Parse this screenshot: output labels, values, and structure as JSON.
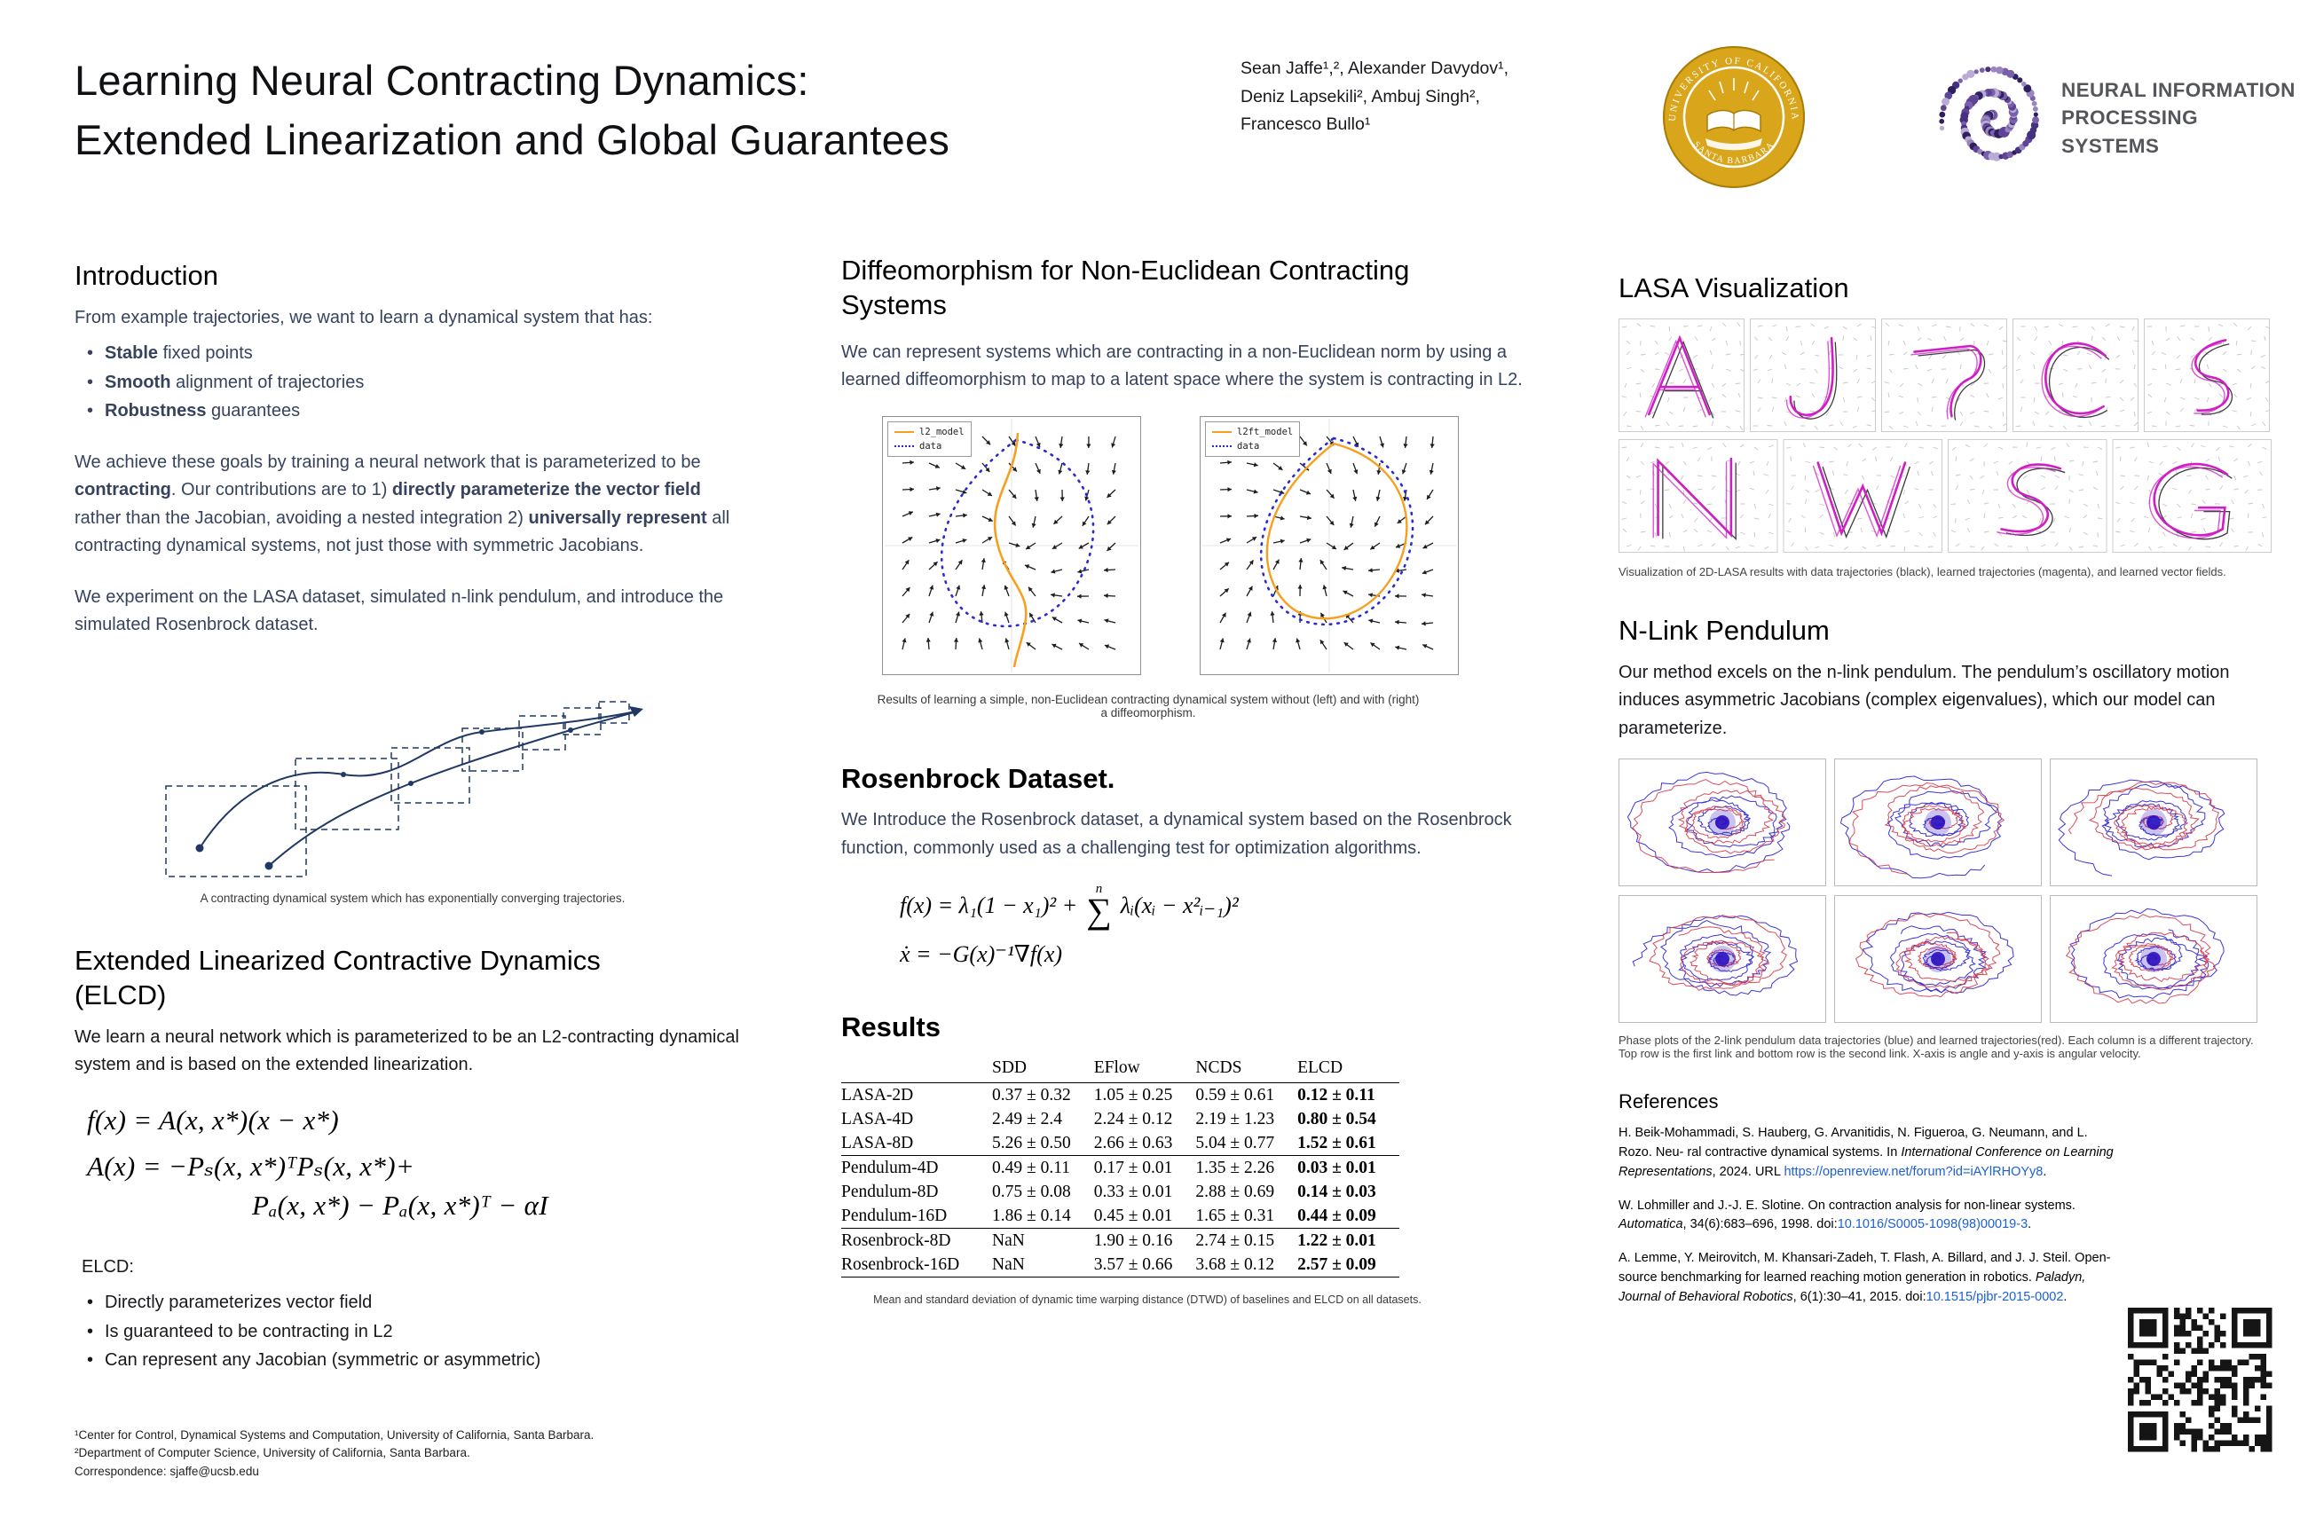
{
  "header": {
    "title_line1": "Learning Neural Contracting Dynamics:",
    "title_line2": "Extended Linearization and Global Guarantees",
    "authors_line1": "Sean Jaffe¹,², Alexander Davydov¹,",
    "authors_line2": "Deniz Lapsekili², Ambuj Singh²,",
    "authors_line3": "Francesco Bullo¹",
    "seal_top": "UNIVERSITY OF CALIFORNIA",
    "seal_bottom": "SANTA BARBARA",
    "neurips_line1": "NEURAL INFORMATION",
    "neurips_line2": "PROCESSING SYSTEMS"
  },
  "intro": {
    "heading": "Introduction",
    "lead": "From example trajectories, we want to learn a dynamical system that has:",
    "bullets": [
      {
        "bold": "Stable",
        "rest": " fixed points"
      },
      {
        "bold": "Smooth",
        "rest": " alignment of trajectories"
      },
      {
        "bold": "Robustness",
        "rest": " guarantees"
      }
    ],
    "para2": {
      "s1": "We achieve these goals by training a neural network that is parameterized to be ",
      "b1": "contracting",
      "s2": ". Our contributions are to 1) ",
      "b2": "directly parameterize the vector field",
      "s3": " rather than the Jacobian, avoiding a nested integration 2) ",
      "b3": "universally represent",
      "s4": " all contracting dynamical systems, not just those with symmetric Jacobians."
    },
    "para3": "We experiment on the LASA dataset, simulated n-link pendulum, and introduce the simulated Rosenbrock dataset.",
    "figure_caption": "A contracting dynamical system which has exponentially converging trajectories."
  },
  "elcd": {
    "heading": "Extended Linearized Contractive Dynamics (ELCD)",
    "body": "We learn a neural network which is parameterized to be an L2-contracting dynamical system and is based on the extended linearization.",
    "eq1": "f(x) = A(x, x*)(x − x*)",
    "eq2a": "A(x) = −Pₛ(x, x*)ᵀPₛ(x, x*)+",
    "eq2b": "Pₐ(x, x*) − Pₐ(x, x*)ᵀ − αI",
    "list_label": "ELCD:",
    "bullets": [
      "Directly parameterizes vector field",
      "Is guaranteed to be contracting in L2",
      "Can represent any Jacobian (symmetric or asymmetric)"
    ]
  },
  "footnotes": {
    "line1": "¹Center for Control, Dynamical Systems and Computation, University of California, Santa Barbara.",
    "line2": "²Department of Computer Science, University of California, Santa Barbara.",
    "line3": "Correspondence: sjaffe@ucsb.edu"
  },
  "diffeo": {
    "heading": "Diffeomorphism for Non-Euclidean Contracting Systems",
    "body": "We can represent systems which are contracting in a non-Euclidean norm by using a learned diffeomorphism to map to a latent space where the system is contracting in L2.",
    "legend_left_model": "l2_model",
    "legend_right_model": "l2ft_model",
    "legend_data": "data",
    "caption": "Results of learning a simple, non-Euclidean contracting dynamical system without (left) and with (right) a diffeomorphism."
  },
  "rosenbrock": {
    "heading": "Rosenbrock Dataset.",
    "body": "We Introduce the Rosenbrock dataset, a dynamical system based on the Rosenbrock function, commonly used as a challenging test for optimization algorithms.",
    "eq1_pre": "f(x) = λ₁(1 − x₁)² +",
    "sum_top": "n",
    "sum_sym": "∑",
    "eq1_post": "λᵢ(xᵢ − x²ᵢ₋₁)²",
    "eq2": "ẋ = −G(x)⁻¹∇f(x)"
  },
  "results": {
    "heading": "Results",
    "columns": [
      "",
      "SDD",
      "EFlow",
      "NCDS",
      "ELCD"
    ],
    "rows": [
      {
        "name": "LASA-2D",
        "sdd": "0.37 ± 0.32",
        "eflow": "1.05 ± 0.25",
        "ncds": "0.59 ± 0.61",
        "elcd": "0.12 ± 0.11"
      },
      {
        "name": "LASA-4D",
        "sdd": "2.49 ± 2.4",
        "eflow": "2.24 ± 0.12",
        "ncds": "2.19 ± 1.23",
        "elcd": "0.80 ± 0.54"
      },
      {
        "name": "LASA-8D",
        "sdd": "5.26 ± 0.50",
        "eflow": "2.66 ± 0.63",
        "ncds": "5.04 ± 0.77",
        "elcd": "1.52 ± 0.61"
      },
      {
        "name": "Pendulum-4D",
        "sdd": "0.49 ± 0.11",
        "eflow": "0.17 ± 0.01",
        "ncds": "1.35 ± 2.26",
        "elcd": "0.03 ± 0.01"
      },
      {
        "name": "Pendulum-8D",
        "sdd": "0.75 ± 0.08",
        "eflow": "0.33 ± 0.01",
        "ncds": "2.88 ± 0.69",
        "elcd": "0.14 ± 0.03"
      },
      {
        "name": "Pendulum-16D",
        "sdd": "1.86 ± 0.14",
        "eflow": "0.45 ± 0.01",
        "ncds": "1.65 ± 0.31",
        "elcd": "0.44 ± 0.09"
      },
      {
        "name": "Rosenbrock-8D",
        "sdd": "NaN",
        "eflow": "1.90 ± 0.16",
        "ncds": "2.74 ± 0.15",
        "elcd": "1.22 ± 0.01"
      },
      {
        "name": "Rosenbrock-16D",
        "sdd": "NaN",
        "eflow": "3.57 ± 0.66",
        "ncds": "3.68 ± 0.12",
        "elcd": "2.57 ± 0.09"
      }
    ],
    "caption": "Mean and standard deviation of dynamic time warping distance (DTWD) of baselines and ELCD on all datasets."
  },
  "lasa": {
    "heading": "LASA Visualization",
    "caption": "Visualization of 2D-LASA results with data trajectories (black), learned trajectories (magenta), and learned vector fields.",
    "letters": [
      "A",
      "J",
      "hook",
      "C",
      "sine",
      "N",
      "W",
      "S",
      "G"
    ]
  },
  "pendulum": {
    "heading": "N-Link Pendulum",
    "body": "Our method excels on the n-link pendulum. The pendulum’s oscillatory motion induces asymmetric Jacobians (complex eigenvalues), which our model can parameterize.",
    "caption": "Phase plots of the 2-link pendulum data trajectories (blue) and learned trajectories(red). Each column is a different trajectory. Top row is the first link and bottom row is the second link. X-axis is angle and y-axis is angular velocity."
  },
  "references": {
    "heading": "References",
    "items": [
      {
        "pre": "H. Beik-Mohammadi, S. Hauberg, G. Arvanitidis, N. Figueroa, G. Neumann, and L. Rozo. Neu- ral contractive dynamical systems. In ",
        "venue": "International Conference on Learning Representations",
        "mid": ", 2024. URL ",
        "link": "https://openreview.net/forum?id=iAYlRHOYy8",
        "post": "."
      },
      {
        "pre": "W. Lohmiller and J.-J. E. Slotine. On contraction analysis for non-linear systems. ",
        "venue": "Automatica",
        "mid": ", 34(6):683–696, 1998. doi:",
        "link": "10.1016/S0005-1098(98)00019-3",
        "post": "."
      },
      {
        "pre": "A. Lemme, Y. Meirovitch, M. Khansari-Zadeh, T. Flash, A. Billard, and J. J. Steil. Open-source benchmarking for learned reaching motion generation in robotics. ",
        "venue": "Paladyn, Journal of Behavioral Robotics",
        "mid": ", 6(1):30–41, 2015. doi:",
        "link": "10.1515/pjbr-2015-0002",
        "post": "."
      }
    ]
  },
  "colors": {
    "accent_navy": "#1f3864",
    "body_navy": "#36425e",
    "magenta": "#cf1fc4",
    "trajectory_black": "#3c3c3c",
    "model_orange": "#f5a021",
    "data_blue": "#2a2ad0",
    "pendulum_blue": "#2a1fd0",
    "pendulum_red": "#d43a4a",
    "pendulum_core": "#2a0fc0",
    "link_blue": "#1b5fd9",
    "neurips_purple": "#6a4c93",
    "seal_gold": "#D9A61B",
    "quiver_gray": "#c6c6c6",
    "quiver_dark": "#1c1c1c"
  }
}
